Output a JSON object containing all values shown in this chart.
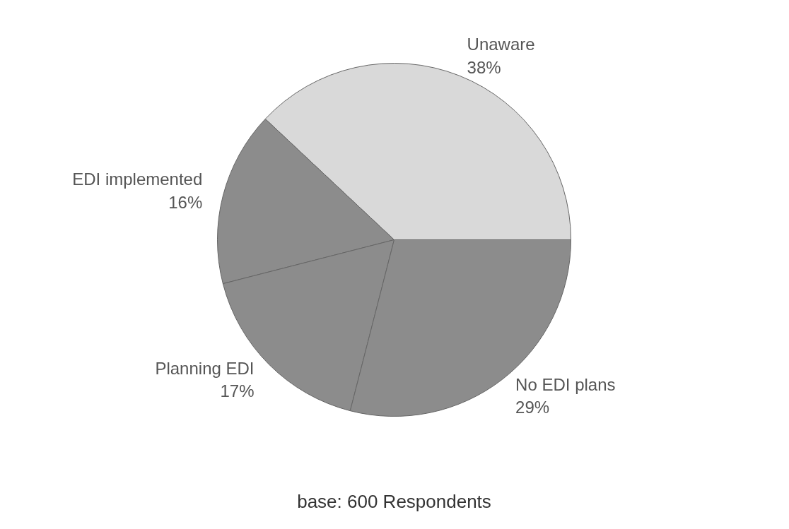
{
  "chart_data": {
    "type": "pie",
    "categories": [
      "Unaware",
      "EDI implemented",
      "Planning EDI",
      "No EDI plans"
    ],
    "values": [
      38,
      16,
      17,
      29
    ],
    "value_labels": [
      "38%",
      "16%",
      "17%",
      "29%"
    ],
    "colors": [
      "#d9d9d9",
      "#8c8c8c",
      "#8c8c8c",
      "#8c8c8c"
    ],
    "annotations": [
      "base: 600 Respondents"
    ]
  }
}
